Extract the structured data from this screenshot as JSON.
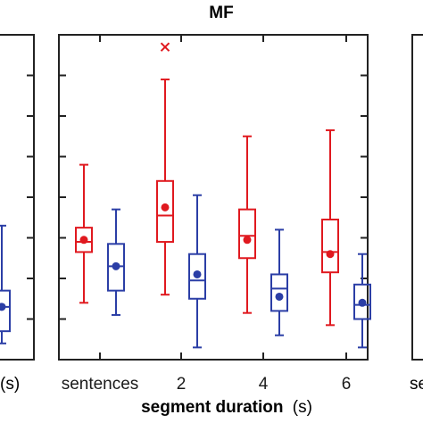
{
  "chart_data": {
    "type": "box",
    "title": "MF",
    "xlabel_main": "segment duration",
    "xlabel_unit": "(s)",
    "left_panel_xlabel_fragment": "(s)",
    "right_panel_xlabel_fragment": "se",
    "categories": [
      "sentences",
      "2",
      "4",
      "6"
    ],
    "ylim": [
      0,
      8
    ],
    "grid": false,
    "series": [
      {
        "color": "#e0191f",
        "boxes": [
          {
            "whisker_low": 1.4,
            "q1": 2.65,
            "median": 2.9,
            "q3": 3.25,
            "whisker_high": 4.8,
            "mean": 2.95,
            "outliers": []
          },
          {
            "whisker_low": 1.6,
            "q1": 2.9,
            "median": 3.55,
            "q3": 4.4,
            "whisker_high": 6.9,
            "mean": 3.75,
            "outliers": [
              7.7
            ]
          },
          {
            "whisker_low": 1.15,
            "q1": 2.5,
            "median": 3.05,
            "q3": 3.7,
            "whisker_high": 5.5,
            "mean": 2.95,
            "outliers": []
          },
          {
            "whisker_low": 0.85,
            "q1": 2.15,
            "median": 2.65,
            "q3": 3.45,
            "whisker_high": 5.65,
            "mean": 2.6,
            "outliers": []
          }
        ]
      },
      {
        "color": "#2b3ea6",
        "boxes": [
          {
            "whisker_low": 1.1,
            "q1": 1.7,
            "median": 2.3,
            "q3": 2.85,
            "whisker_high": 3.7,
            "mean": 2.3,
            "outliers": []
          },
          {
            "whisker_low": 0.3,
            "q1": 1.5,
            "median": 1.95,
            "q3": 2.6,
            "whisker_high": 4.05,
            "mean": 2.1,
            "outliers": []
          },
          {
            "whisker_low": 0.6,
            "q1": 1.2,
            "median": 1.75,
            "q3": 2.1,
            "whisker_high": 3.2,
            "mean": 1.55,
            "outliers": []
          },
          {
            "whisker_low": 0.3,
            "q1": 1.0,
            "median": 1.35,
            "q3": 1.85,
            "whisker_high": 2.6,
            "mean": 1.4,
            "outliers": []
          }
        ]
      }
    ]
  },
  "colors": {
    "red": "#e0191f",
    "blue": "#2b3ea6",
    "axis": "#222222"
  }
}
